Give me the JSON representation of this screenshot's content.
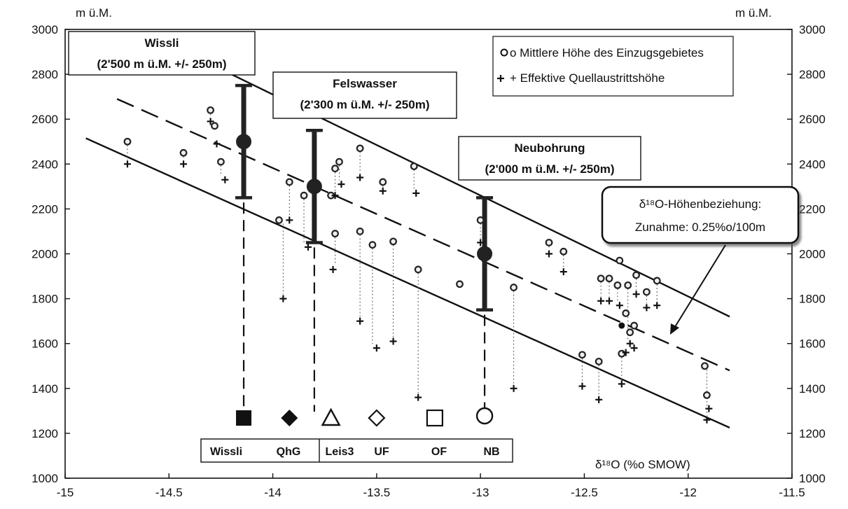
{
  "chart_data": {
    "type": "scatter",
    "title": "",
    "xlabel": "δ¹⁸O (%o SMOW)",
    "ylabel_left": "m ü.M.",
    "ylabel_right": "m ü.M.",
    "xlim": [
      -15,
      -11.5
    ],
    "ylim": [
      1000,
      3000
    ],
    "x_ticks": [
      "-15",
      "-14.5",
      "-14",
      "-13.5",
      "-13",
      "-12.5",
      "-12",
      "-11.5"
    ],
    "y_ticks": [
      "1000",
      "1200",
      "1400",
      "1600",
      "1800",
      "2000",
      "2200",
      "2400",
      "2600",
      "2800",
      "3000"
    ],
    "legend": {
      "position": "top-right",
      "items": [
        "o Mittlere Höhe des Einzugsgebietes",
        "+ Effektive Quellaustrittshöhe"
      ]
    },
    "series": [
      {
        "name": "Mittlere Höhe des Einzugsgebietes",
        "marker": "circle",
        "points": [
          [
            -14.7,
            2500
          ],
          [
            -14.43,
            2450
          ],
          [
            -14.3,
            2640
          ],
          [
            -14.28,
            2570
          ],
          [
            -14.25,
            2410
          ],
          [
            -13.97,
            2150
          ],
          [
            -13.92,
            2320
          ],
          [
            -13.85,
            2260
          ],
          [
            -13.72,
            2260
          ],
          [
            -13.7,
            2090
          ],
          [
            -13.7,
            2380
          ],
          [
            -13.68,
            2410
          ],
          [
            -13.58,
            2470
          ],
          [
            -13.58,
            2100
          ],
          [
            -13.52,
            2040
          ],
          [
            -13.47,
            2320
          ],
          [
            -13.42,
            2055
          ],
          [
            -13.32,
            2390
          ],
          [
            -13.3,
            1930
          ],
          [
            -13.1,
            1865
          ],
          [
            -13.0,
            2150
          ],
          [
            -12.84,
            1850
          ],
          [
            -12.67,
            2050
          ],
          [
            -12.6,
            2010
          ],
          [
            -12.51,
            1550
          ],
          [
            -12.43,
            1520
          ],
          [
            -12.42,
            1890
          ],
          [
            -12.38,
            1890
          ],
          [
            -12.34,
            1860
          ],
          [
            -12.33,
            1970
          ],
          [
            -12.32,
            1555
          ],
          [
            -12.3,
            1735
          ],
          [
            -12.29,
            1860
          ],
          [
            -12.28,
            1650
          ],
          [
            -12.26,
            1680
          ],
          [
            -12.25,
            1905
          ],
          [
            -12.2,
            1830
          ],
          [
            -12.15,
            1880
          ],
          [
            -11.92,
            1500
          ],
          [
            -11.91,
            1370
          ]
        ]
      },
      {
        "name": "Effektive Quellaustrittshöhe",
        "marker": "plus",
        "points": [
          [
            -14.7,
            2400
          ],
          [
            -14.43,
            2400
          ],
          [
            -14.3,
            2590
          ],
          [
            -14.27,
            2490
          ],
          [
            -14.23,
            2330
          ],
          [
            -13.95,
            1800
          ],
          [
            -13.92,
            2150
          ],
          [
            -13.83,
            2030
          ],
          [
            -13.71,
            1930
          ],
          [
            -13.7,
            2260
          ],
          [
            -13.67,
            2310
          ],
          [
            -13.58,
            2340
          ],
          [
            -13.58,
            1700
          ],
          [
            -13.5,
            1580
          ],
          [
            -13.47,
            2280
          ],
          [
            -13.42,
            1610
          ],
          [
            -13.31,
            2270
          ],
          [
            -13.3,
            1360
          ],
          [
            -13.0,
            2050
          ],
          [
            -12.84,
            1400
          ],
          [
            -12.67,
            2000
          ],
          [
            -12.6,
            1920
          ],
          [
            -12.51,
            1410
          ],
          [
            -12.43,
            1350
          ],
          [
            -12.42,
            1790
          ],
          [
            -12.38,
            1790
          ],
          [
            -12.33,
            1770
          ],
          [
            -12.32,
            1420
          ],
          [
            -12.3,
            1560
          ],
          [
            -12.28,
            1600
          ],
          [
            -12.26,
            1580
          ],
          [
            -12.25,
            1820
          ],
          [
            -12.2,
            1760
          ],
          [
            -12.15,
            1770
          ],
          [
            -11.91,
            1260
          ],
          [
            -11.9,
            1310
          ]
        ]
      }
    ],
    "pairs": [
      [
        -14.7,
        2500,
        2400
      ],
      [
        -14.43,
        2450,
        2400
      ],
      [
        -14.3,
        2640,
        2590
      ],
      [
        -14.25,
        2410,
        2330
      ],
      [
        -13.95,
        2150,
        1800
      ],
      [
        -13.92,
        2320,
        2150
      ],
      [
        -13.85,
        2260,
        2030
      ],
      [
        -13.7,
        2090,
        1930
      ],
      [
        -13.7,
        2380,
        2260
      ],
      [
        -13.68,
        2410,
        2310
      ],
      [
        -13.58,
        2470,
        2340
      ],
      [
        -13.58,
        2100,
        1700
      ],
      [
        -13.52,
        2040,
        1580
      ],
      [
        -13.47,
        2320,
        2280
      ],
      [
        -13.42,
        2055,
        1610
      ],
      [
        -13.32,
        2390,
        2270
      ],
      [
        -13.3,
        1930,
        1360
      ],
      [
        -13.0,
        2150,
        2050
      ],
      [
        -12.84,
        1850,
        1400
      ],
      [
        -12.67,
        2050,
        2000
      ],
      [
        -12.6,
        2010,
        1920
      ],
      [
        -12.51,
        1550,
        1410
      ],
      [
        -12.43,
        1520,
        1350
      ],
      [
        -12.42,
        1890,
        1790
      ],
      [
        -12.38,
        1890,
        1790
      ],
      [
        -12.34,
        1860,
        1770
      ],
      [
        -12.32,
        1555,
        1420
      ],
      [
        -12.29,
        1860,
        1600
      ],
      [
        -12.25,
        1905,
        1820
      ],
      [
        -12.2,
        1830,
        1760
      ],
      [
        -12.15,
        1880,
        1770
      ],
      [
        -11.91,
        1500,
        1260
      ]
    ],
    "lines": [
      {
        "style": "solid",
        "from": [
          -14.2,
          2800
        ],
        "to": [
          -11.8,
          1720
        ]
      },
      {
        "style": "dashed",
        "from": [
          -14.75,
          2690
        ],
        "to": [
          -11.8,
          1480
        ]
      },
      {
        "style": "solid",
        "from": [
          -14.9,
          2515
        ],
        "to": [
          -11.8,
          1225
        ]
      }
    ],
    "extra_points": [
      [
        -12.32,
        1680
      ]
    ],
    "ranges": [
      {
        "label_line1": "Wissli",
        "label_line2": "(2'500 m ü.M. +/- 250m)",
        "x": -14.14,
        "center": 2500,
        "low": 2250,
        "high": 2750,
        "symbol_label": "Wissli",
        "symbol": "filled-square"
      },
      {
        "label_line1": "Felswasser",
        "label_line2": "(2'300 m ü.M. +/- 250m)",
        "x": -13.8,
        "center": 2300,
        "low": 2050,
        "high": 2550,
        "symbol_label": "QhG",
        "symbol": "filled-diamond"
      },
      {
        "label_line1": "Neubohrung",
        "label_line2": "(2'000 m ü.M. +/- 250m)",
        "x": -12.98,
        "center": 2000,
        "low": 1750,
        "high": 2250,
        "symbol_label": "NB",
        "symbol": "open-circle"
      }
    ],
    "site_symbols": [
      {
        "label": "Wissli",
        "symbol": "filled-square",
        "x": -14.14
      },
      {
        "label": "QhG",
        "symbol": "filled-diamond",
        "x": -13.92
      },
      {
        "label": "Leis3",
        "symbol": "open-triangle",
        "x": -13.72
      },
      {
        "label": "UF",
        "symbol": "open-diamond",
        "x": -13.5
      },
      {
        "label": "OF",
        "symbol": "open-square",
        "x": -13.22
      },
      {
        "label": "NB",
        "symbol": "open-circle",
        "x": -12.98
      }
    ],
    "annotation": {
      "line1": "δ¹⁸O-Höhenbeziehung:",
      "line2": "Zunahme: 0.25%o/100m"
    }
  }
}
